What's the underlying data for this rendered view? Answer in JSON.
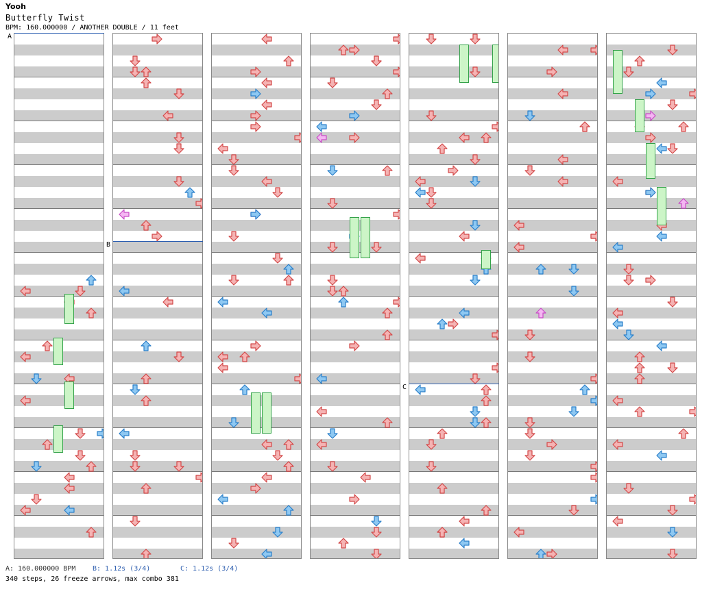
{
  "header": {
    "artist": "Yooh",
    "title": "Butterfly Twist",
    "info": "BPM: 160.000000 / ANOTHER DOUBLE / 11 feet"
  },
  "markers": {
    "a": "A",
    "b": "B",
    "c": "C"
  },
  "footer": {
    "bpm": "A: 160.000000 BPM",
    "stop_b": "B: 1.12s (3/4)",
    "stop_c": "C: 1.12s (3/4)",
    "stats": "340 steps, 26 freeze arrows, max combo 381"
  },
  "colors": {
    "red_fill": "#f5b3b3",
    "red_stroke": "#d24848",
    "blue_fill": "#8ec8f2",
    "blue_stroke": "#2a7fc9",
    "pink_fill": "#f4b6f2",
    "pink_stroke": "#c84cc6",
    "freeze_fill": "#ccf5c7",
    "freeze_stroke": "#34a24a",
    "marker_line": "#2a5db0"
  },
  "chart": {
    "columns": 7,
    "measures": 12,
    "total_measures": 84,
    "lanes_per_side": 4,
    "note_icons": [
      "left-arrow-icon",
      "down-arrow-icon",
      "up-arrow-icon",
      "right-arrow-icon"
    ],
    "freeze_icon": "freeze-arrow-icon"
  }
}
